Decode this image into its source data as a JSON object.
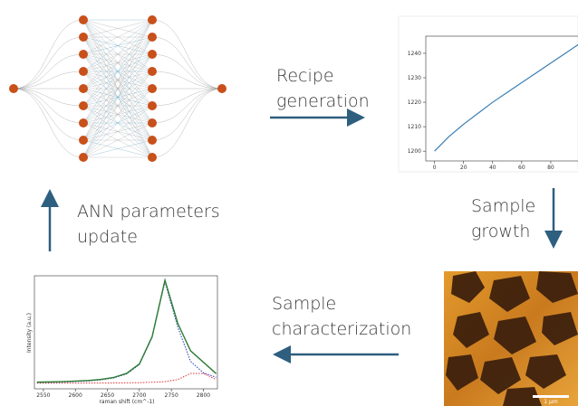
{
  "steps": [
    {
      "lines": [
        "Recipe",
        "generation"
      ]
    },
    {
      "lines": [
        "Sample",
        "growth"
      ]
    },
    {
      "lines": [
        "Sample",
        "characterization"
      ]
    },
    {
      "lines": [
        "ANN parameters",
        "update"
      ]
    }
  ],
  "recipe_plot": {
    "x": [
      0,
      10,
      20,
      30,
      40,
      50,
      60,
      70,
      80,
      90,
      100
    ],
    "values": [
      1200,
      1206,
      1211,
      1215.5,
      1220,
      1224,
      1228,
      1232,
      1236,
      1240,
      1244
    ],
    "color": "#3a7fb5",
    "xlim": [
      -6,
      100
    ],
    "ylim": [
      1196,
      1247
    ],
    "xticks": [
      0,
      20,
      40,
      60,
      80
    ],
    "yticks": [
      1200,
      1210,
      1220,
      1230,
      1240
    ]
  },
  "afm_image": {
    "scale_label": "1 μm"
  },
  "spectrum_plot": {
    "x_label": "raman shift (cm^-1)",
    "y_label": "Intensity (a.u.)",
    "x": [
      2540,
      2560,
      2580,
      2600,
      2620,
      2640,
      2660,
      2680,
      2700,
      2720,
      2740,
      2760,
      2780,
      2800,
      2820
    ],
    "series": [
      {
        "color": "#e03030",
        "dash": true,
        "values": [
          0.055,
          0.055,
          0.055,
          0.055,
          0.056,
          0.056,
          0.057,
          0.058,
          0.06,
          0.064,
          0.07,
          0.09,
          0.15,
          0.15,
          0.09
        ]
      },
      {
        "color": "#1f3fbf",
        "dash": true,
        "values": [
          0.06,
          0.062,
          0.065,
          0.07,
          0.076,
          0.087,
          0.106,
          0.144,
          0.235,
          0.5,
          1.04,
          0.6,
          0.267,
          0.156,
          0.112
        ]
      },
      {
        "color": "#2e7d32",
        "dash": false,
        "values": [
          0.065,
          0.067,
          0.07,
          0.075,
          0.081,
          0.092,
          0.111,
          0.15,
          0.242,
          0.509,
          1.057,
          0.637,
          0.37,
          0.259,
          0.148
        ]
      }
    ],
    "xlim": [
      2536,
      2822
    ],
    "ylim": [
      0,
      1.1
    ],
    "xticks": [
      2550,
      2600,
      2650,
      2700,
      2750,
      2800
    ]
  }
}
